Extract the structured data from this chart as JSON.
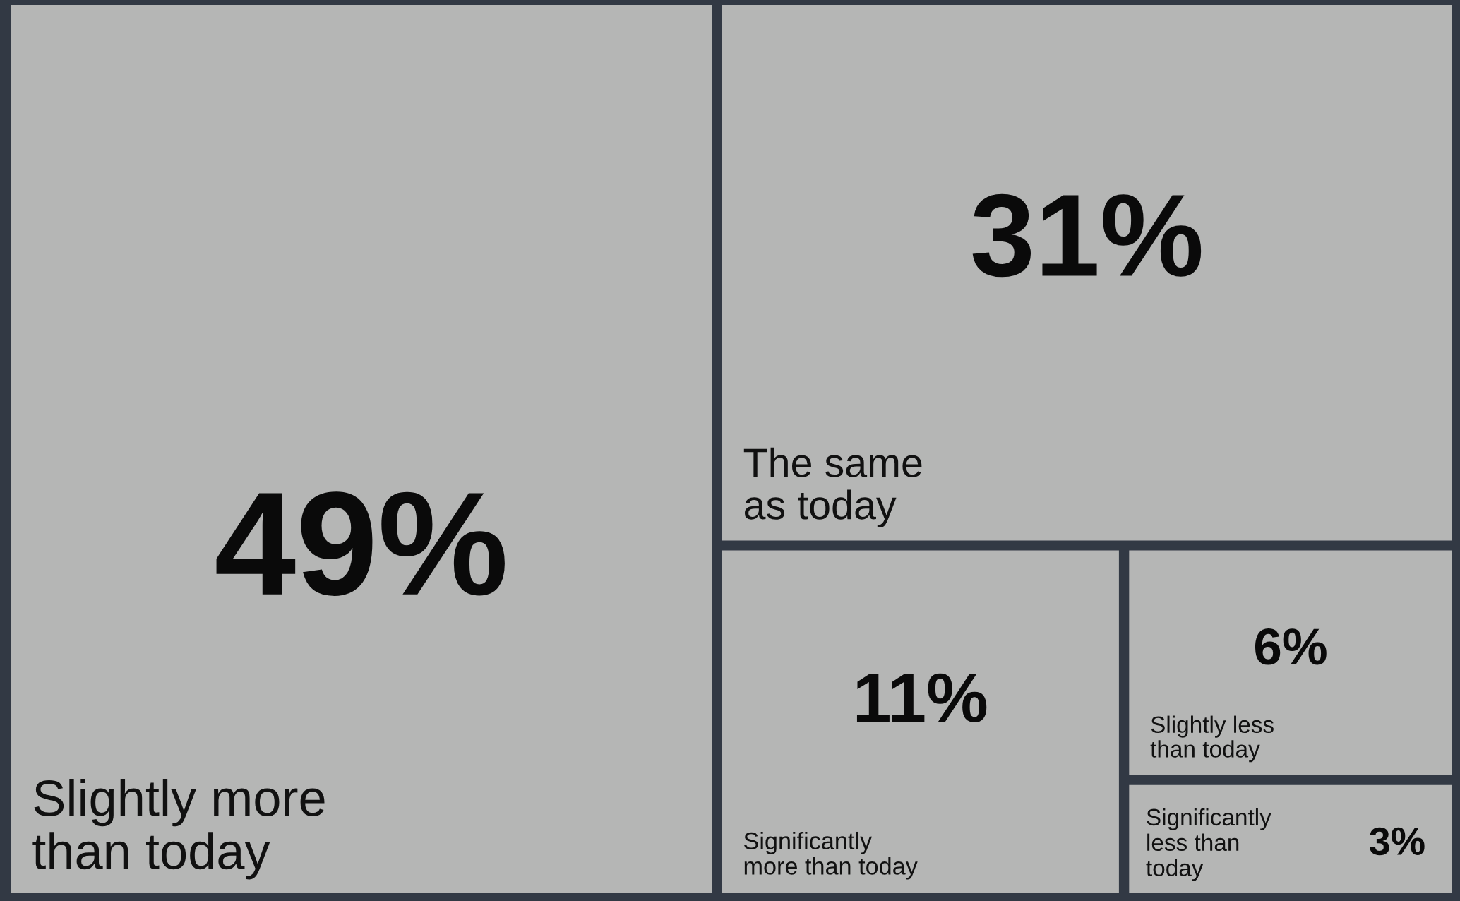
{
  "chart_data": {
    "type": "other",
    "categories": [
      "Slightly more\nthan today",
      "The same\nas today",
      "Significantly\nmore than today",
      "Slightly less\nthan today",
      "Significantly\nless than\ntoday"
    ],
    "values": [
      49,
      31,
      11,
      6,
      3
    ],
    "value_labels": [
      "49%",
      "31%",
      "11%",
      "6%",
      "3%"
    ],
    "color": "#b5b6b5"
  }
}
